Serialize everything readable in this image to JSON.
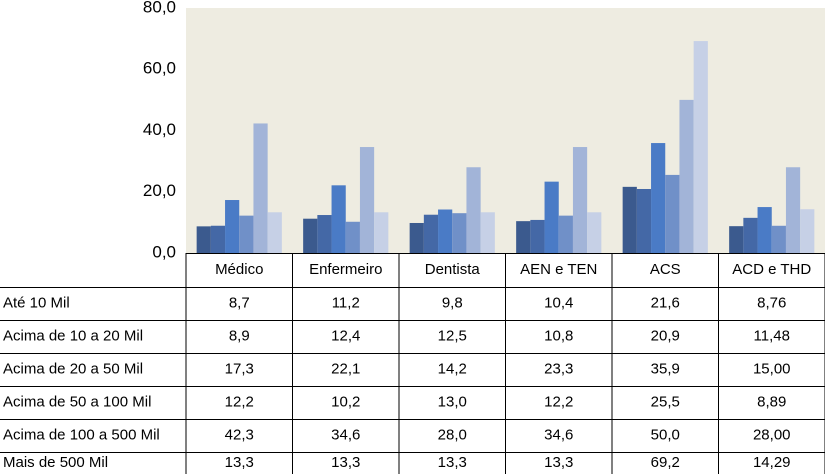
{
  "chart_data": {
    "type": "bar",
    "categories": [
      "Médico",
      "Enfermeiro",
      "Dentista",
      "AEN e TEN",
      "ACS",
      "ACD e THD"
    ],
    "series": [
      {
        "name": "Até 10 Mil",
        "color": "#3b5a8e",
        "values": [
          8.7,
          11.2,
          9.8,
          10.4,
          21.6,
          8.76
        ],
        "value_labels": [
          "8,7",
          "11,2",
          "9,8",
          "10,4",
          "21,6",
          "8,76"
        ]
      },
      {
        "name": "Acima de 10 a 20 Mil",
        "color": "#4468a6",
        "values": [
          8.9,
          12.4,
          12.5,
          10.8,
          20.9,
          11.48
        ],
        "value_labels": [
          "8,9",
          "12,4",
          "12,5",
          "10,8",
          "20,9",
          "11,48"
        ]
      },
      {
        "name": "Acima de 20 a 50 Mil",
        "color": "#4a7bc6",
        "values": [
          17.3,
          22.1,
          14.2,
          23.3,
          35.9,
          15.0
        ],
        "value_labels": [
          "17,3",
          "22,1",
          "14,2",
          "23,3",
          "35,9",
          "15,00"
        ]
      },
      {
        "name": "Acima de 50 a 100 Mil",
        "color": "#7090c8",
        "values": [
          12.2,
          10.2,
          13.0,
          12.2,
          25.5,
          8.89
        ],
        "value_labels": [
          "12,2",
          "10,2",
          "13,0",
          "12,2",
          "25,5",
          "8,89"
        ]
      },
      {
        "name": "Acima de 100 a 500 Mil",
        "color": "#a2b4d8",
        "values": [
          42.3,
          34.6,
          28.0,
          34.6,
          50.0,
          28.0
        ],
        "value_labels": [
          "42,3",
          "34,6",
          "28,0",
          "34,6",
          "50,0",
          "28,00"
        ]
      },
      {
        "name": "Mais de 500 Mil",
        "color": "#c6d0e6",
        "values": [
          13.3,
          13.3,
          13.3,
          13.3,
          69.2,
          14.29
        ],
        "value_labels": [
          "13,3",
          "13,3",
          "13,3",
          "13,3",
          "69,2",
          "14,29"
        ]
      }
    ],
    "ylim": [
      0,
      80
    ],
    "yticks": [
      {
        "value": 0,
        "label": "0,0"
      },
      {
        "value": 20,
        "label": "20,0"
      },
      {
        "value": 40,
        "label": "40,0"
      },
      {
        "value": 60,
        "label": "60,0"
      },
      {
        "value": 80,
        "label": "80,0"
      }
    ],
    "grid": false
  }
}
